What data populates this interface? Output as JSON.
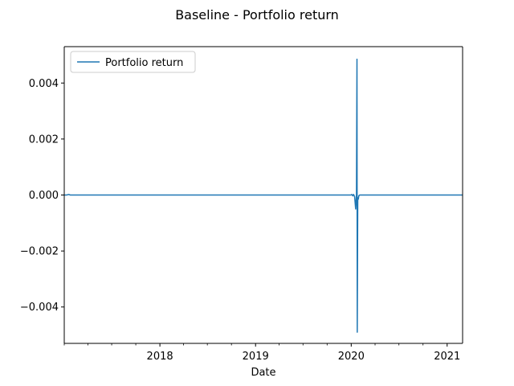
{
  "chart_data": {
    "type": "line",
    "title": "Baseline - Portfolio return",
    "xlabel": "Date",
    "ylabel": "",
    "x_axis_type": "date",
    "xlim": [
      "2017-01-01",
      "2021-03-01"
    ],
    "ylim": [
      -0.0053,
      0.0053
    ],
    "x_ticks": [
      {
        "value": "2018-01-01",
        "label": "2018"
      },
      {
        "value": "2019-01-01",
        "label": "2019"
      },
      {
        "value": "2020-01-01",
        "label": "2020"
      },
      {
        "value": "2021-01-01",
        "label": "2021"
      }
    ],
    "y_ticks": [
      {
        "value": 0.004,
        "label": "0.004"
      },
      {
        "value": 0.002,
        "label": "0.002"
      },
      {
        "value": 0.0,
        "label": "0.000"
      },
      {
        "value": -0.002,
        "label": "−0.002"
      },
      {
        "value": -0.004,
        "label": "−0.004"
      }
    ],
    "grid": false,
    "legend": {
      "position": "upper-left",
      "entries": [
        "Portfolio return"
      ]
    },
    "series": [
      {
        "name": "Portfolio return",
        "color": "#1f77b4",
        "points": [
          [
            "2017-01-01",
            0.0
          ],
          [
            "2017-01-10",
            0.0
          ],
          [
            "2017-01-18",
            2e-05
          ],
          [
            "2017-01-24",
            0.0
          ],
          [
            "2019-12-31",
            0.0
          ],
          [
            "2020-01-03",
            2e-05
          ],
          [
            "2020-01-07",
            -3e-05
          ],
          [
            "2020-01-10",
            2e-05
          ],
          [
            "2020-01-14",
            -6e-05
          ],
          [
            "2020-01-18",
            -0.0005
          ],
          [
            "2020-01-21",
            0.0
          ],
          [
            "2020-01-23",
            0.00485
          ],
          [
            "2020-01-24",
            -0.0049
          ],
          [
            "2020-01-26",
            -0.0001
          ],
          [
            "2020-01-28",
            -0.00015
          ],
          [
            "2020-01-30",
            -3e-05
          ],
          [
            "2020-02-02",
            0.0
          ],
          [
            "2021-03-01",
            0.0
          ]
        ]
      }
    ]
  }
}
